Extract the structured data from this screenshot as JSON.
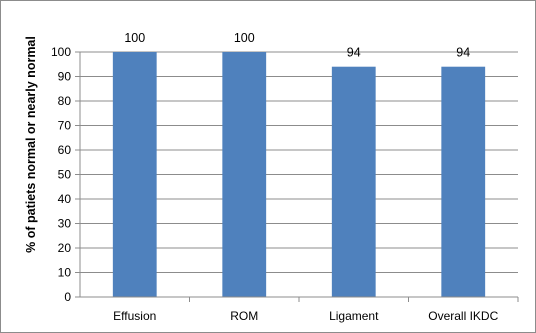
{
  "chart_data": {
    "type": "bar",
    "title": "",
    "xlabel": "",
    "ylabel": "% of patiets normal or nearly normal",
    "categories": [
      "Effusion",
      "ROM",
      "Ligament",
      "Overall IKDC"
    ],
    "values": [
      100,
      100,
      94,
      94
    ],
    "data_labels": [
      "100",
      "100",
      "94",
      "94"
    ],
    "ylim": [
      0,
      100
    ],
    "yticks": [
      0,
      10,
      20,
      30,
      40,
      50,
      60,
      70,
      80,
      90,
      100
    ],
    "grid": true,
    "legend": "none",
    "bar_color": "#4f81bd",
    "grid_color": "#8c8c8c"
  }
}
